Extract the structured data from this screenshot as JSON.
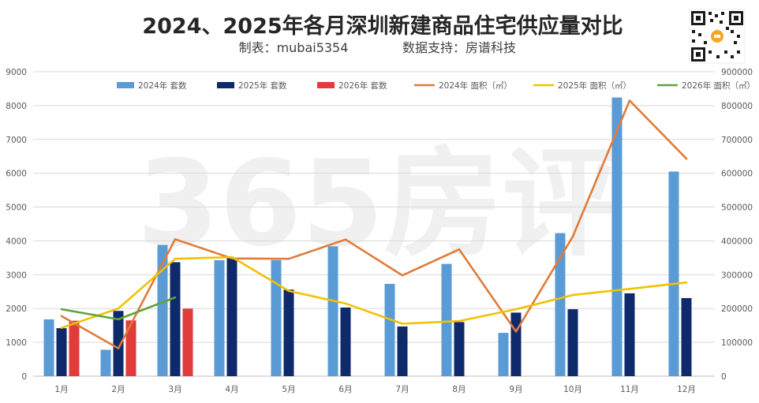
{
  "title": "2024、2025年各月深圳新建商品住宅供应量对比",
  "maker": "制表：mubai5354",
  "source": "数据支持：房谱科技",
  "watermark": "365房评",
  "chart_data": {
    "type": "bar+line",
    "categories": [
      "1月",
      "2月",
      "3月",
      "4月",
      "5月",
      "6月",
      "7月",
      "8月",
      "9月",
      "10月",
      "11月",
      "12月"
    ],
    "y_left": {
      "range": [
        0,
        9000
      ],
      "ticks": [
        0,
        1000,
        2000,
        3000,
        4000,
        5000,
        6000,
        7000,
        8000,
        9000
      ]
    },
    "y_right": {
      "range": [
        0,
        900000
      ],
      "ticks": [
        0,
        100000,
        200000,
        300000,
        400000,
        500000,
        600000,
        700000,
        800000,
        900000
      ]
    },
    "grid": true,
    "legend_position": "top",
    "bar_series": [
      {
        "name": "2024年 套数",
        "color": "#5b9bd5",
        "values": [
          1680,
          780,
          3880,
          3430,
          3430,
          3840,
          2730,
          3320,
          1280,
          4230,
          8240,
          6050
        ]
      },
      {
        "name": "2025年 套数",
        "color": "#0e2a6b",
        "values": [
          1420,
          1930,
          3370,
          3500,
          2560,
          2030,
          1470,
          1600,
          1880,
          1980,
          2450,
          2310
        ]
      },
      {
        "name": "2026年 套数",
        "color": "#e23b3b",
        "values": [
          1640,
          1650,
          2000,
          null,
          null,
          null,
          null,
          null,
          null,
          null,
          null,
          null
        ]
      }
    ],
    "line_series": [
      {
        "name": "2024年 面积（㎡）",
        "color": "#e07b39",
        "values": [
          178000,
          82000,
          405000,
          348000,
          347000,
          404000,
          298000,
          375000,
          132000,
          413000,
          815000,
          643000
        ]
      },
      {
        "name": "2025年 面积（㎡）",
        "color": "#f2c100",
        "values": [
          143000,
          200000,
          347000,
          352000,
          252000,
          215000,
          155000,
          163000,
          198000,
          240000,
          258000,
          277000
        ]
      },
      {
        "name": "2026年 面积（㎡）",
        "color": "#5fa33a",
        "values": [
          198000,
          168000,
          233000,
          null,
          null,
          null,
          null,
          null,
          null,
          null,
          null,
          null
        ]
      }
    ]
  }
}
